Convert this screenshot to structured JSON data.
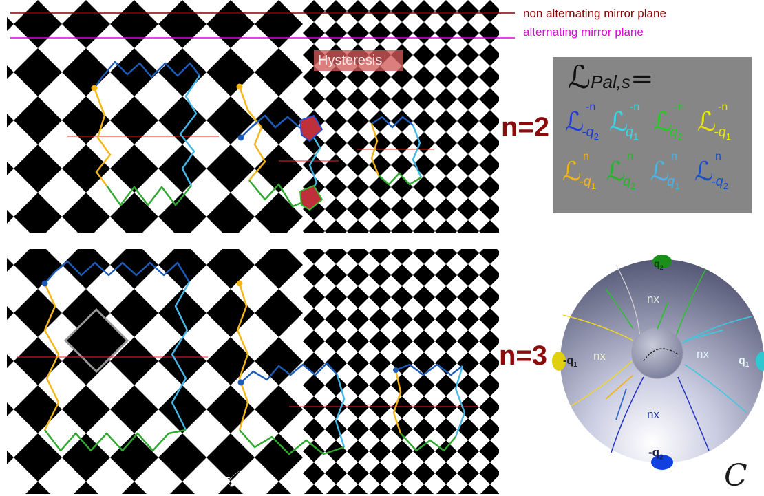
{
  "legend": {
    "non_alternating": "non alternating mirror plane",
    "alternating": "alternating mirror plane",
    "colors": {
      "non_alternating": "#8b0000",
      "alternating": "#e000e0"
    }
  },
  "hysteresis_label": "Hysteresis",
  "operator_panel": {
    "title_symbol": "ℒ",
    "title_subscript": "Pal,s",
    "title_equals": "=",
    "row1": [
      {
        "symbol": "ℒ",
        "sub": "-q",
        "sub_index": "2",
        "sup": "-n",
        "color": "#1d3cd8"
      },
      {
        "symbol": "ℒ",
        "sub": "q",
        "sub_index": "1",
        "sup": "-n",
        "color": "#35d8e8"
      },
      {
        "symbol": "ℒ",
        "sub": "q",
        "sub_index": "2",
        "sup": "-n",
        "color": "#28c828"
      },
      {
        "symbol": "ℒ",
        "sub": "-q",
        "sub_index": "1",
        "sup": "-n",
        "color": "#e8e800"
      }
    ],
    "row2": [
      {
        "symbol": "ℒ",
        "sub": "-q",
        "sub_index": "1",
        "sup": "n",
        "color": "#f0b418"
      },
      {
        "symbol": "ℒ",
        "sub": "q",
        "sub_index": "2",
        "sup": "n",
        "color": "#28b428"
      },
      {
        "symbol": "ℒ",
        "sub": "q",
        "sub_index": "1",
        "sup": "n",
        "color": "#4ab4e8"
      },
      {
        "symbol": "ℒ",
        "sub": "-q",
        "sub_index": "2",
        "sup": "n",
        "color": "#1850c8"
      }
    ]
  },
  "n_labels": [
    "n=2",
    "n=3"
  ],
  "panel_labels": {
    "a": "𝒜",
    "c": "C"
  },
  "sphere": {
    "top": {
      "text": "q",
      "index": "2"
    },
    "left": {
      "text": "-q",
      "index": "1"
    },
    "right": {
      "text": "q",
      "index": "1"
    },
    "bottom": {
      "text": "-q",
      "index": "2"
    },
    "regions": [
      "nx",
      "nx",
      "nx",
      "nx"
    ]
  }
}
